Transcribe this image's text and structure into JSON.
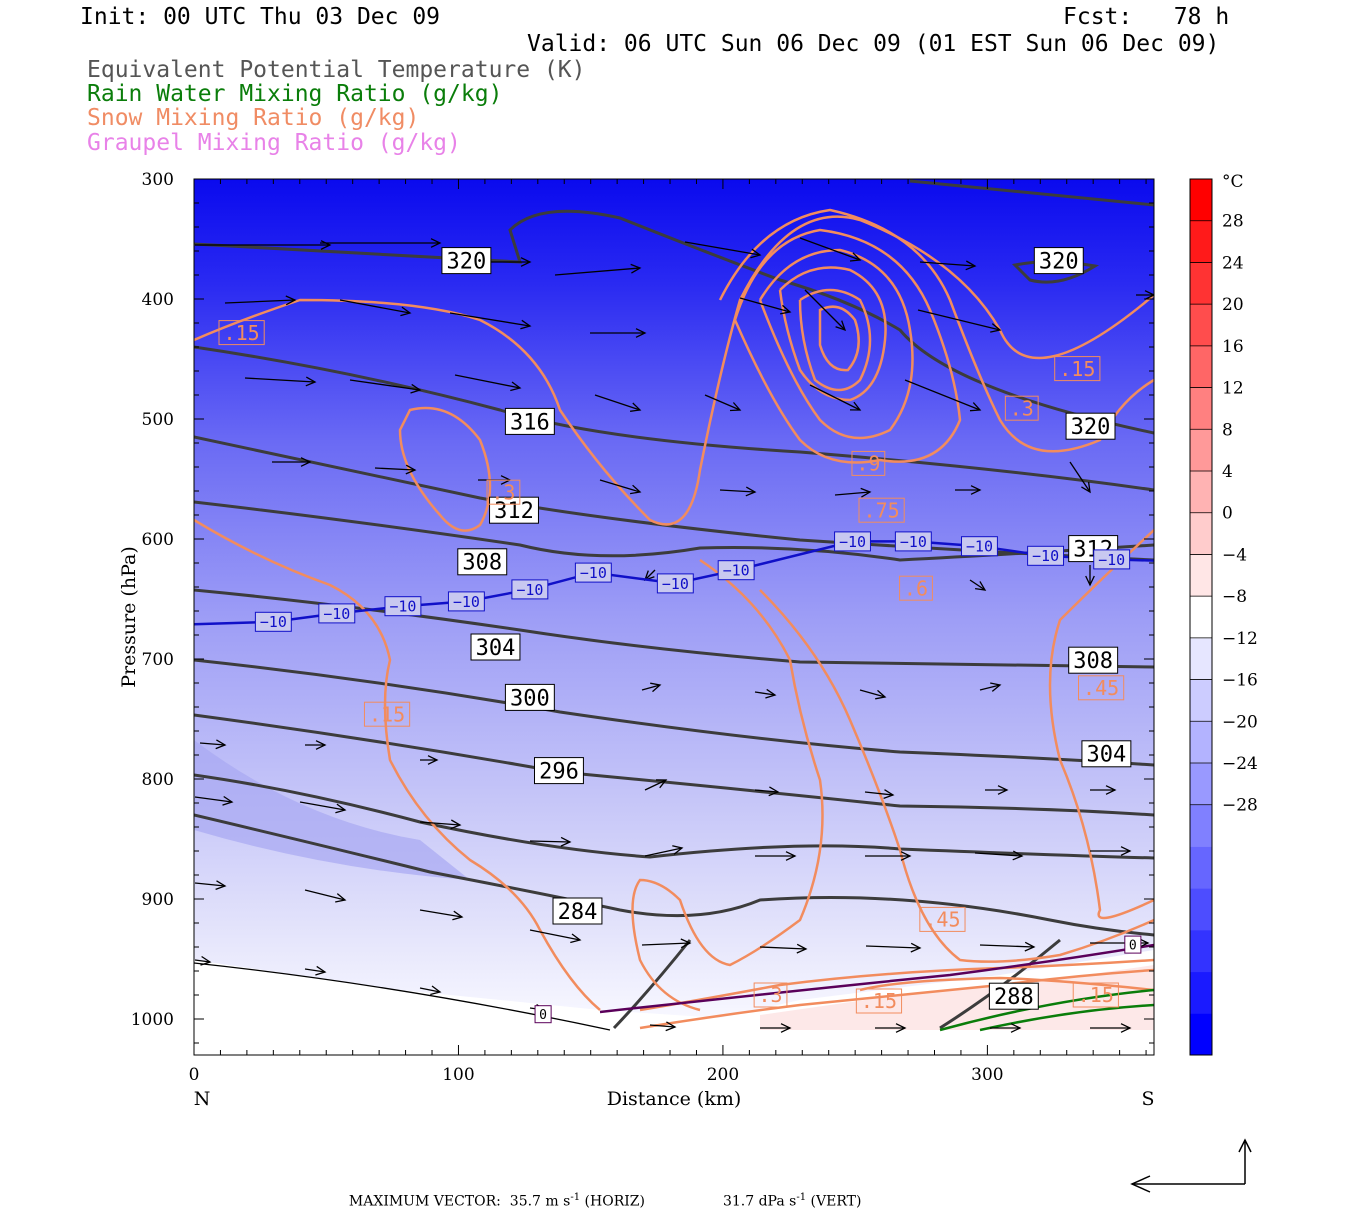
{
  "header": {
    "init": "Init: 00 UTC Thu 03 Dec 09",
    "fcst": "Fcst:   78 h",
    "valid": "Valid: 06 UTC Sun 06 Dec 09 (01 EST Sun 06 Dec 09)",
    "legend": [
      {
        "text": "Equivalent Potential Temperature (K)",
        "color": "#555555"
      },
      {
        "text": "Rain Water Mixing Ratio (g/kg)",
        "color": "#0a7d0a"
      },
      {
        "text": "Snow Mixing Ratio (g/kg)",
        "color": "#f08c64"
      },
      {
        "text": "Graupel Mixing Ratio (g/kg)",
        "color": "#e882e8"
      }
    ]
  },
  "footer": {
    "max_vector_label": "MAXIMUM VECTOR:",
    "horiz_value": "35.7 m s",
    "horiz_unit": "(HORIZ)",
    "vert_value": "31.7 dPa s",
    "vert_unit": "(VERT)",
    "exp": "-1"
  },
  "chart_data": {
    "type": "contour",
    "xlabel": "Distance (km)",
    "ylabel": "Pressure (hPa)",
    "xlim": [
      0,
      363
    ],
    "ylim": [
      1030,
      300
    ],
    "x_ticks": [
      0,
      100,
      200,
      300
    ],
    "y_ticks": [
      300,
      400,
      500,
      600,
      700,
      800,
      900,
      1000
    ],
    "x_end_labels": {
      "left": "N",
      "right": "S"
    },
    "colorbar": {
      "unit": "°C",
      "labels": [
        28,
        24,
        20,
        16,
        12,
        8,
        4,
        0,
        -4,
        -8,
        -12,
        -16,
        -20,
        -24,
        -28
      ],
      "colors": [
        "#0000ff",
        "#1a1aff",
        "#3333ff",
        "#4d4dff",
        "#6666ff",
        "#8080ff",
        "#9999ff",
        "#b3b3ff",
        "#ccccff",
        "#e6e6ff",
        "#ffffff",
        "#ffe6e6",
        "#ffcccc",
        "#ffb3b3",
        "#ff9999",
        "#ff8080",
        "#ff6666",
        "#ff4d4d",
        "#ff3333",
        "#ff1a1a",
        "#ff0000"
      ]
    },
    "theta_e_labels": [
      {
        "text": "320",
        "x": 103,
        "p": 368
      },
      {
        "text": "320",
        "x": 327,
        "p": 368
      },
      {
        "text": "316",
        "x": 127,
        "p": 502
      },
      {
        "text": "320",
        "x": 339,
        "p": 506
      },
      {
        "text": "312",
        "x": 121,
        "p": 576
      },
      {
        "text": "312",
        "x": 340,
        "p": 608
      },
      {
        "text": "308",
        "x": 109,
        "p": 619
      },
      {
        "text": "304",
        "x": 114,
        "p": 690
      },
      {
        "text": "308",
        "x": 340,
        "p": 701
      },
      {
        "text": "300",
        "x": 127,
        "p": 732
      },
      {
        "text": "304",
        "x": 345,
        "p": 779
      },
      {
        "text": "296",
        "x": 138,
        "p": 793
      },
      {
        "text": "284",
        "x": 145,
        "p": 910
      },
      {
        "text": "288",
        "x": 310,
        "p": 981
      }
    ],
    "isotherm_labels": {
      "text": "−10",
      "points": [
        [
          30,
          669
        ],
        [
          54,
          662
        ],
        [
          79,
          656
        ],
        [
          103,
          652
        ],
        [
          127,
          642
        ],
        [
          151,
          628
        ],
        [
          182,
          637
        ],
        [
          205,
          626
        ],
        [
          249,
          602
        ],
        [
          272,
          602
        ],
        [
          297,
          606
        ],
        [
          322,
          614
        ],
        [
          347,
          617
        ]
      ]
    },
    "snow_labels": [
      {
        "text": ".15",
        "x": 18,
        "p": 428
      },
      {
        "text": ".15",
        "x": 334,
        "p": 458
      },
      {
        "text": ".3",
        "x": 313,
        "p": 491
      },
      {
        "text": ".9",
        "x": 255,
        "p": 537
      },
      {
        "text": ".3",
        "x": 117,
        "p": 561
      },
      {
        "text": ".75",
        "x": 260,
        "p": 576
      },
      {
        "text": ".6",
        "x": 273,
        "p": 641
      },
      {
        "text": ".15",
        "x": 73,
        "p": 746
      },
      {
        "text": ".45",
        "x": 343,
        "p": 724
      },
      {
        "text": ".45",
        "x": 283,
        "p": 917
      },
      {
        "text": ".3",
        "x": 218,
        "p": 980
      },
      {
        "text": ".15",
        "x": 259,
        "p": 985
      },
      {
        "text": ".15",
        "x": 341,
        "p": 980
      }
    ],
    "marker_labels": [
      {
        "text": "0",
        "x": 132,
        "p": 996
      },
      {
        "text": "0",
        "x": 355,
        "p": 938
      }
    ]
  }
}
